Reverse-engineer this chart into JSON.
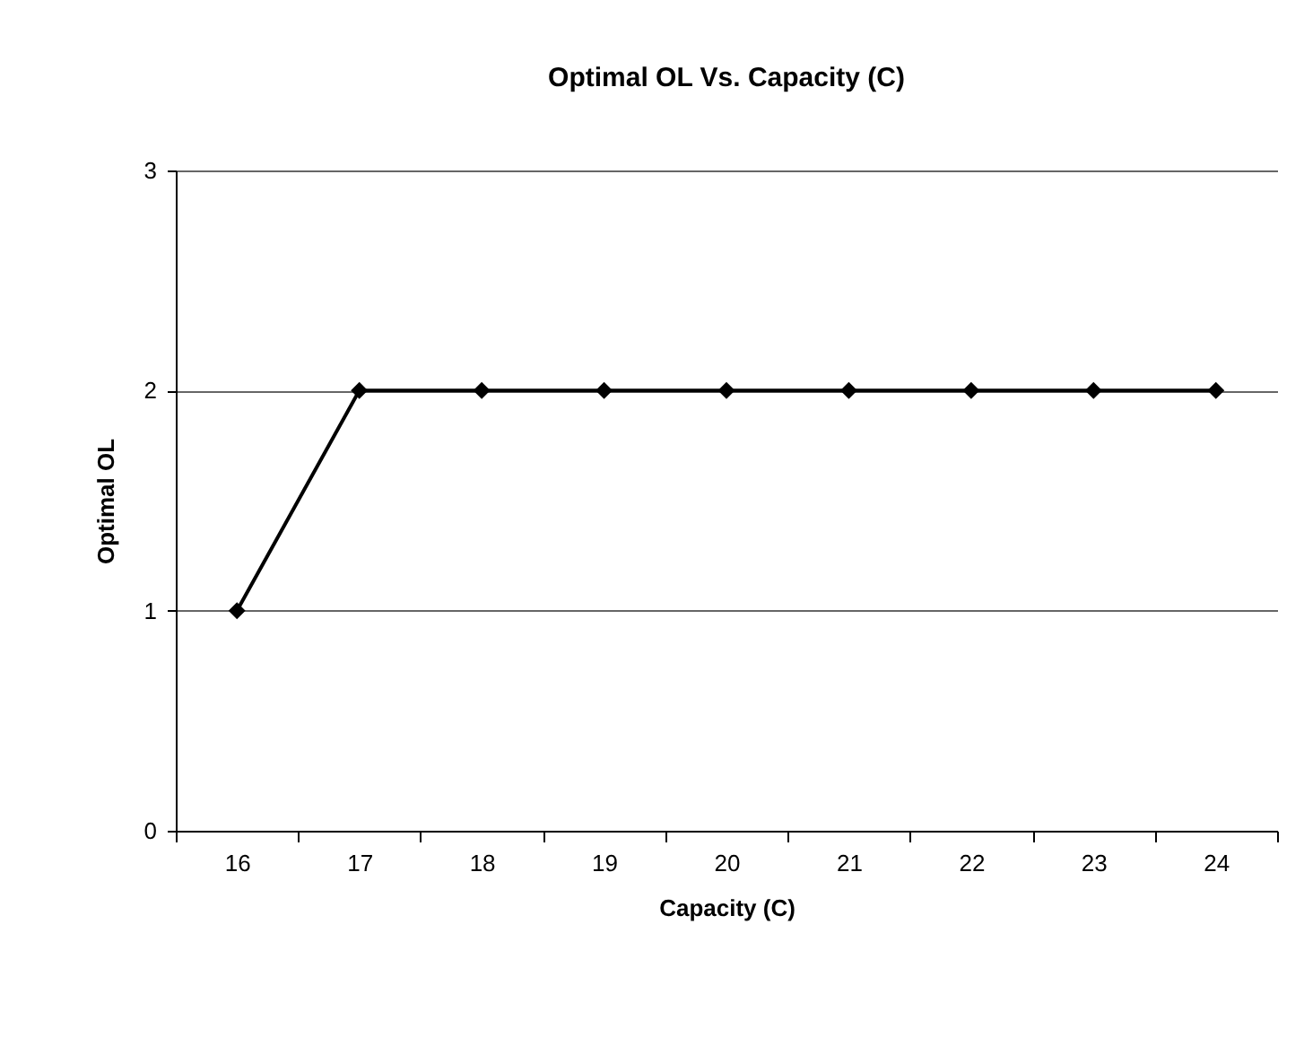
{
  "chart_data": {
    "type": "line",
    "title": "Optimal OL Vs. Capacity (C)",
    "xlabel": "Capacity (C)",
    "ylabel": "Optimal OL",
    "categories": [
      "16",
      "17",
      "18",
      "19",
      "20",
      "21",
      "22",
      "23",
      "24"
    ],
    "series": [
      {
        "color": "#000000",
        "values": [
          1,
          2,
          2,
          2,
          2,
          2,
          2,
          2,
          2
        ]
      }
    ],
    "ylim": [
      0,
      3
    ],
    "yticks": [
      0,
      1,
      2,
      3
    ],
    "grid": "y",
    "marker": "diamond",
    "line_style": "solid",
    "legend": false
  }
}
